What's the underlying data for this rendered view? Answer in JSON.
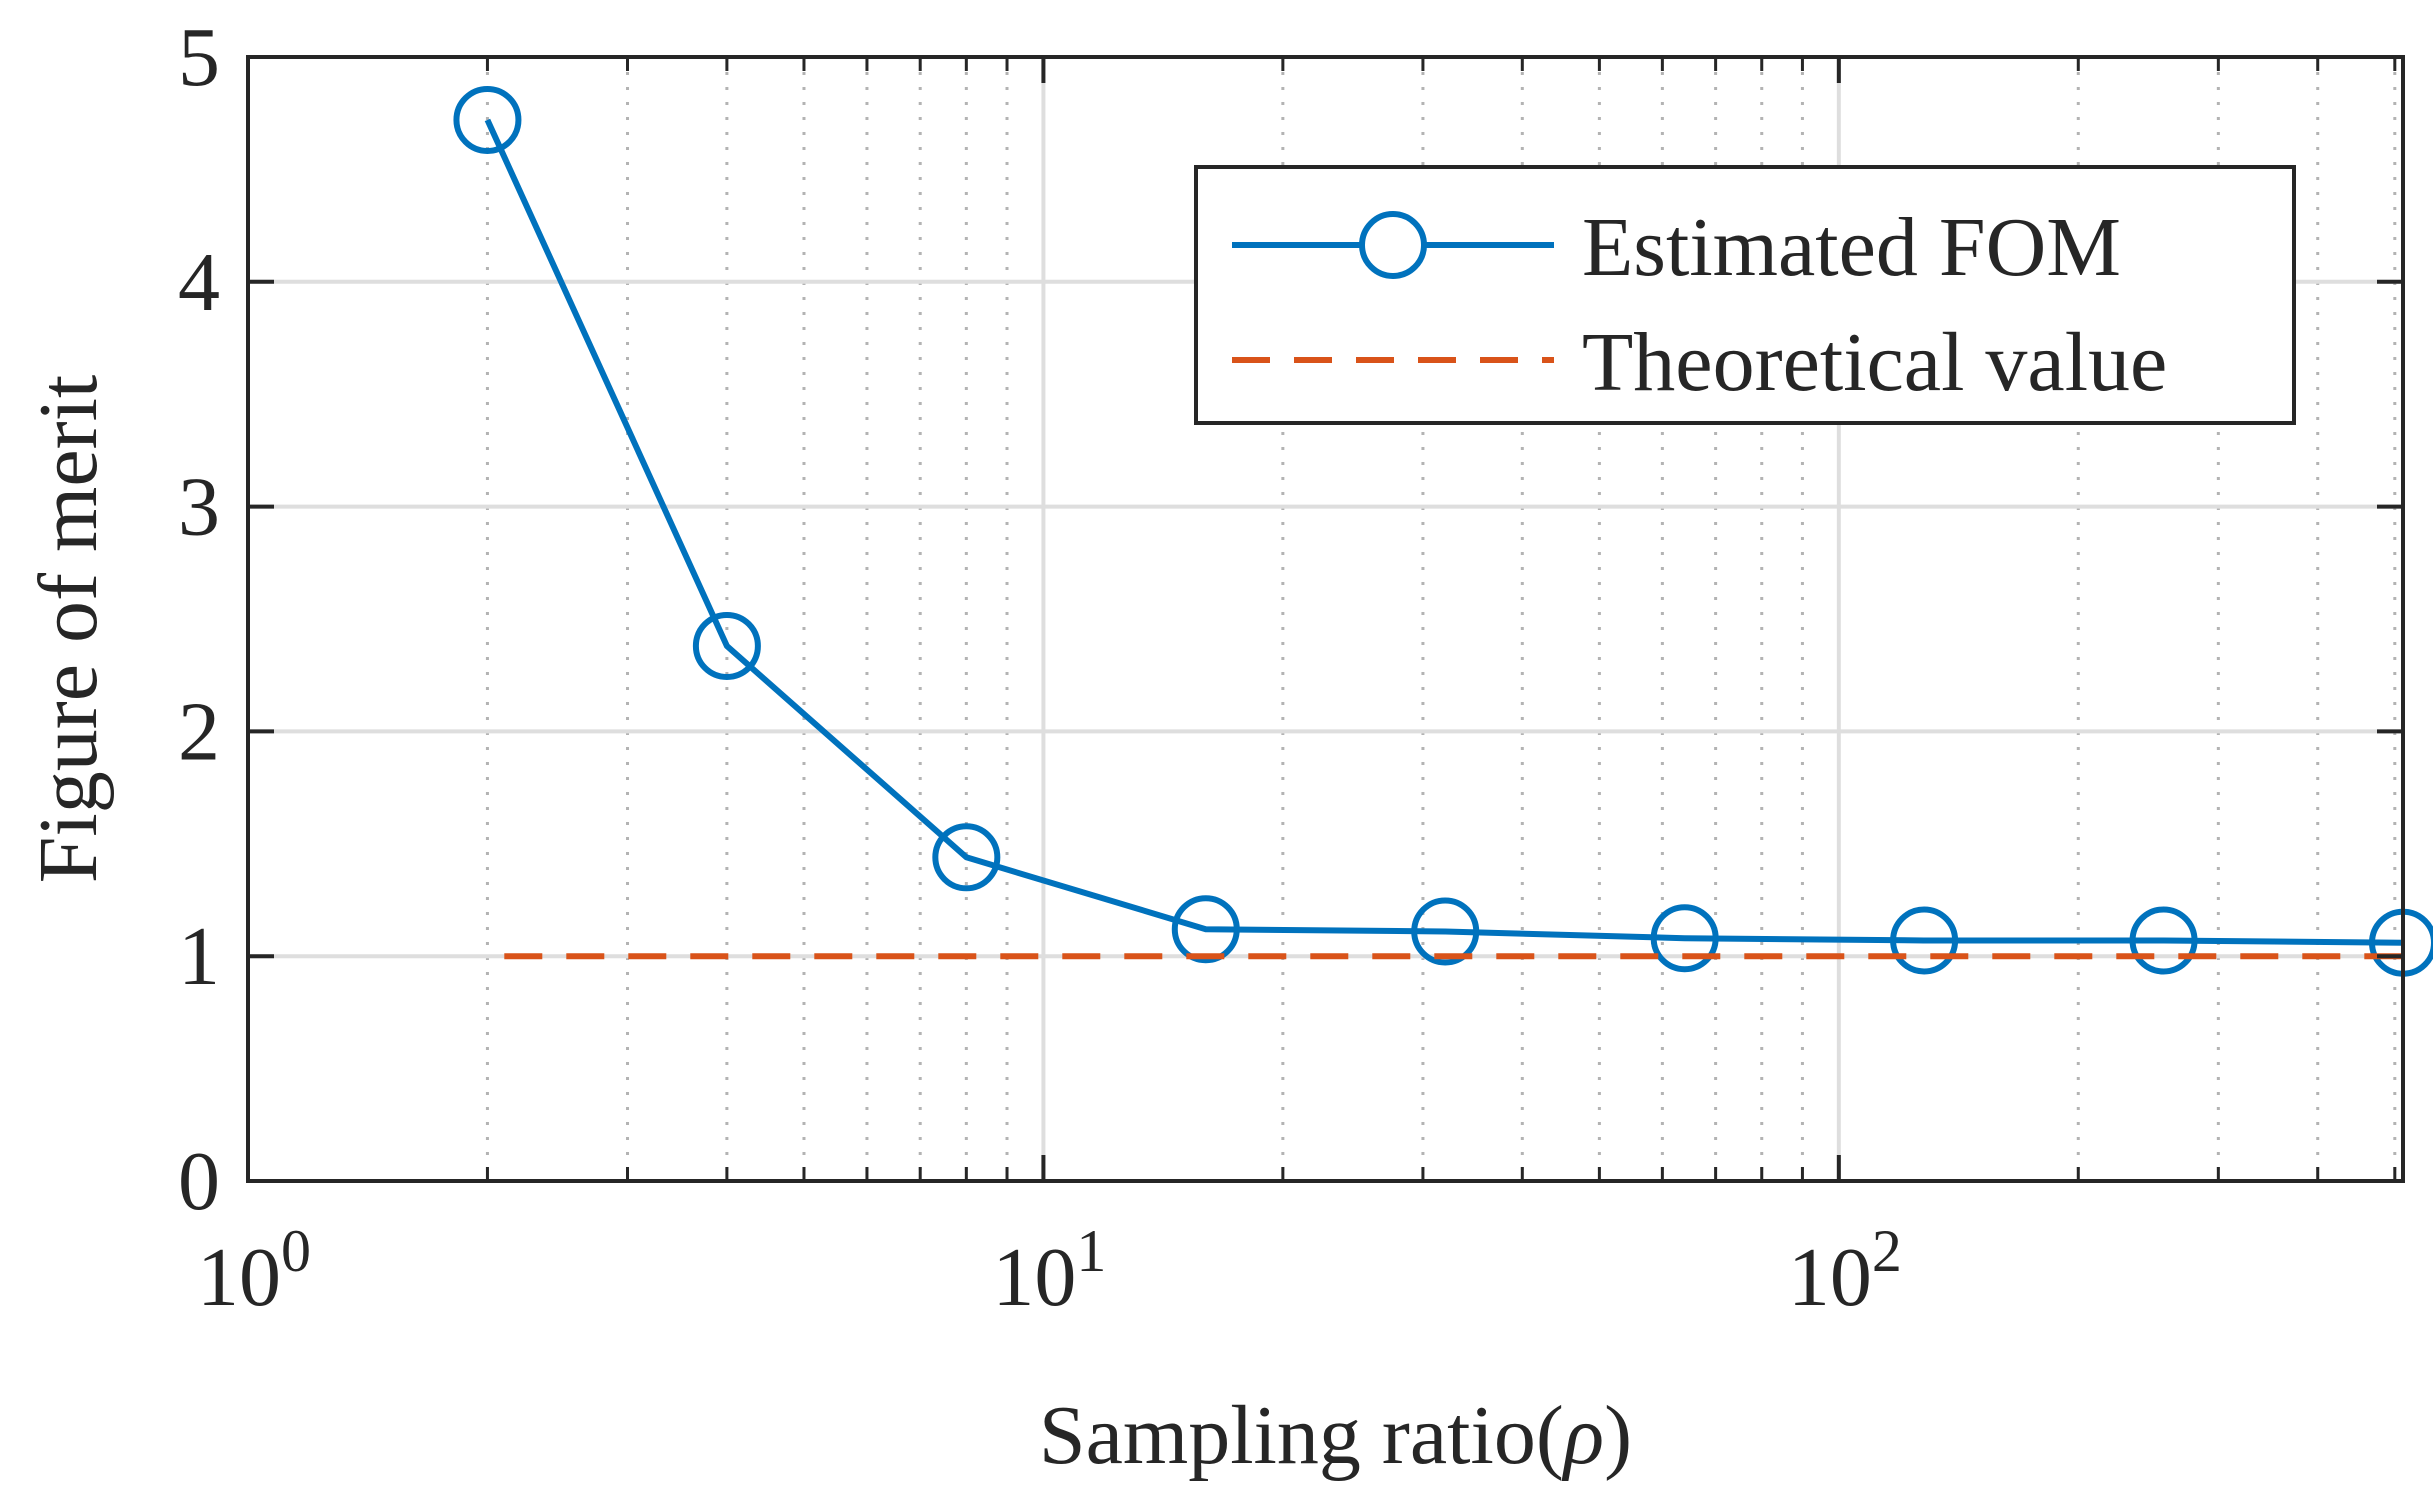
{
  "chart_data": {
    "type": "line",
    "title": "",
    "xlabel": "Sampling ratio(",
    "xlabel_symbol": "ρ",
    "xlabel_suffix": ")",
    "ylabel": "Figure of merit",
    "xscale": "log",
    "xlim": [
      1,
      512
    ],
    "ylim": [
      0,
      5
    ],
    "grid": true,
    "legend_position": "top-right",
    "x_ticks": [
      {
        "value": 1,
        "base": "10",
        "exp": "0"
      },
      {
        "value": 10,
        "base": "10",
        "exp": "1"
      },
      {
        "value": 100,
        "base": "10",
        "exp": "2"
      }
    ],
    "y_ticks": [
      0,
      1,
      2,
      3,
      4,
      5
    ],
    "y_tick_labels": [
      "0",
      "1",
      "2",
      "3",
      "4",
      "5"
    ],
    "series": [
      {
        "name": "Estimated FOM",
        "color": "#0072BD",
        "style": "solid",
        "marker": "circle",
        "x": [
          2,
          4,
          8,
          16,
          32,
          64,
          128,
          256,
          512
        ],
        "y": [
          4.72,
          2.38,
          1.44,
          1.12,
          1.11,
          1.08,
          1.07,
          1.07,
          1.06
        ]
      },
      {
        "name": "Theoretical value",
        "color": "#D95319",
        "style": "dashed",
        "marker": "none",
        "x": [
          2.1,
          512
        ],
        "y": [
          1.0,
          1.0
        ]
      }
    ]
  }
}
